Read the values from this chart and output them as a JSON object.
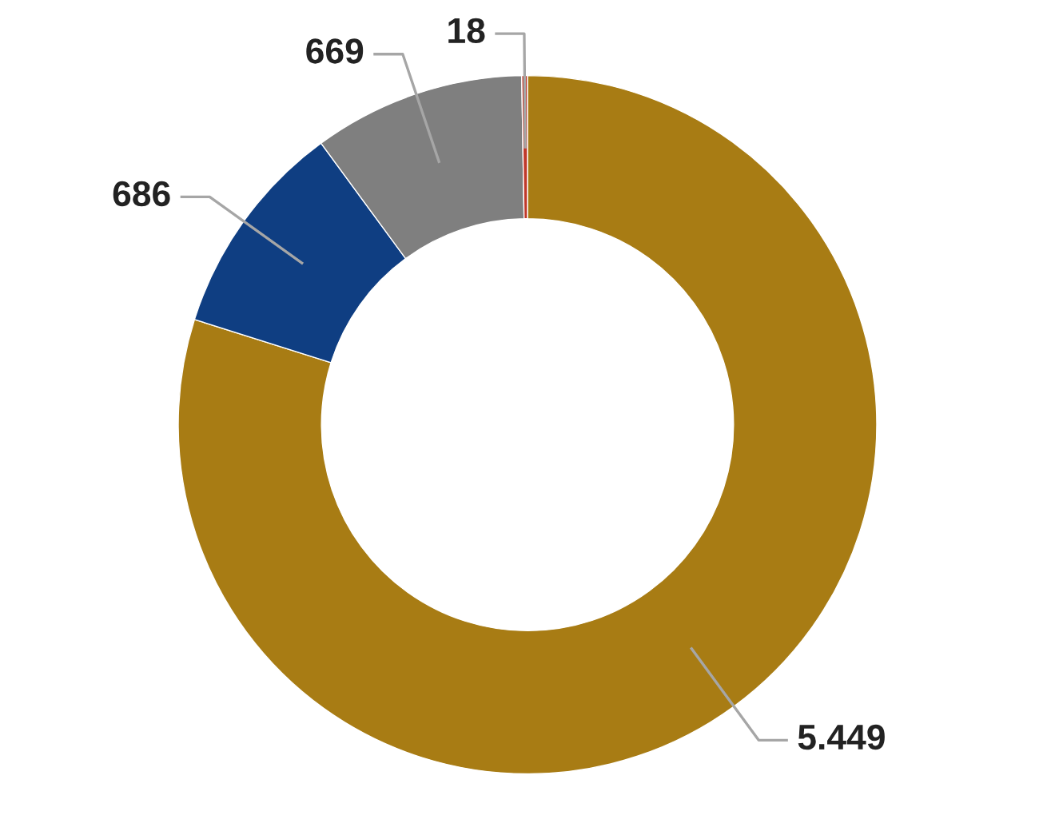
{
  "chart_data": {
    "type": "donut",
    "categories": [
      null,
      null,
      null,
      null
    ],
    "values": [
      5449,
      686,
      669,
      18
    ],
    "colors": [
      "#a87c14",
      "#0f3e82",
      "#7f7f7f",
      "#c0392b"
    ],
    "value_labels": [
      "5.449",
      "686",
      "669",
      "18"
    ]
  }
}
